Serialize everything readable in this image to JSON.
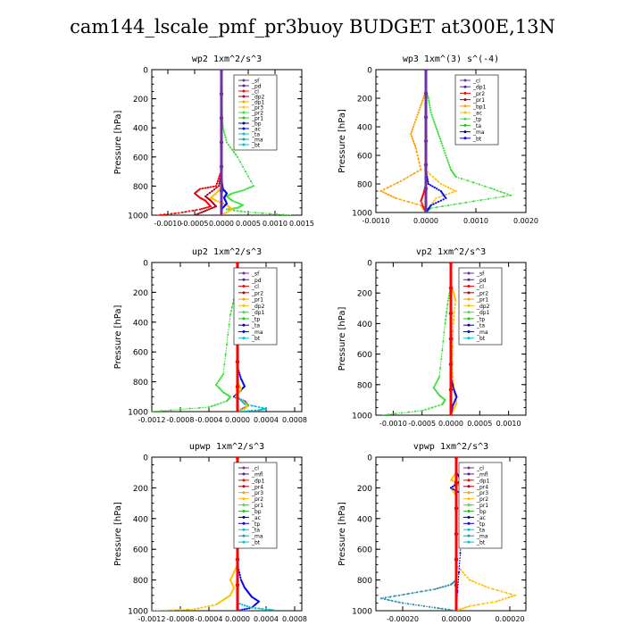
{
  "title": "cam144_lscale_pmf_pr3buoy  BUDGET at300E,13N",
  "colors": {
    "purple": "#7030a0",
    "violet": "#5020a0",
    "red": "#ff0000",
    "darkred": "#b00020",
    "orange": "#ffa000",
    "yellow": "#ffc000",
    "green": "#20c020",
    "lime": "#40e040",
    "blue": "#0000ff",
    "navy": "#0000a0",
    "teal": "#3090b0",
    "cyan": "#00c0e0",
    "bt": "#ff00ff"
  },
  "chart_data": [
    {
      "type": "line",
      "title": "wp2  1xm^2/s^3",
      "ylabel": "Pressure [hPa]",
      "xlim": [
        -0.0013,
        0.0015
      ],
      "xticks": [
        -0.001,
        -0.0005,
        0.0,
        0.0005,
        0.001,
        0.0015
      ],
      "xtick_labels": [
        "-0.0010",
        "-0.0005",
        "0.0000",
        "0.0005",
        "0.0010",
        "0.0015"
      ],
      "ylim": [
        0,
        1000
      ],
      "yticks": [
        0,
        200,
        400,
        600,
        800,
        1000
      ],
      "legend": [
        "_sf",
        "_pd",
        "_cl",
        "_dp2",
        "_dp1",
        "_pr3",
        "_pr2",
        "_pr1",
        "_bp",
        "_ac",
        "_ta",
        "_ma",
        "_bt"
      ],
      "series": [
        {
          "name": "_pr1",
          "color": "lime",
          "x": [
            0,
            0,
            1e-05,
            3e-05,
            0.0001,
            0.0003,
            0.0006,
            0.0004,
            0.0002,
            0.0001,
            0.0002,
            0.0004,
            0.0003,
            0.0001,
            0.0005,
            0.0013
          ],
          "y": [
            0,
            200,
            300,
            400,
            500,
            600,
            800,
            830,
            850,
            870,
            900,
            930,
            950,
            960,
            980,
            1000
          ]
        },
        {
          "name": "_dp1",
          "color": "red",
          "x": [
            0,
            0,
            -1e-05,
            -0.0001,
            -0.0004,
            -0.0005,
            -0.0004,
            -0.0003,
            -0.0002,
            -0.0004,
            -0.0008,
            -0.0012
          ],
          "y": [
            0,
            600,
            700,
            800,
            820,
            850,
            880,
            900,
            940,
            960,
            985,
            1000
          ]
        },
        {
          "name": "_dp2",
          "color": "darkred",
          "x": [
            0,
            0,
            -5e-05,
            -0.0003,
            -0.0002,
            -0.0001,
            -0.0003,
            -0.0005
          ],
          "y": [
            0,
            700,
            800,
            870,
            900,
            940,
            970,
            1000
          ]
        },
        {
          "name": "_pr2",
          "color": "yellow",
          "x": [
            0,
            0,
            2e-05,
            -0.0001,
            -0.0002,
            -0.0001,
            0.0001,
            0.0002,
            0
          ],
          "y": [
            0,
            700,
            800,
            850,
            880,
            900,
            930,
            960,
            1000
          ]
        },
        {
          "name": "_ac",
          "color": "blue",
          "x": [
            0,
            0,
            3e-05,
            0.0001,
            5e-05,
            0.0001,
            0,
            0
          ],
          "y": [
            0,
            750,
            820,
            850,
            880,
            920,
            960,
            1000
          ]
        },
        {
          "name": "_sf",
          "color": "purple",
          "x": [
            0,
            0
          ],
          "y": [
            0,
            1000
          ]
        }
      ]
    },
    {
      "type": "line",
      "title": "wp3  1xm^(3) s^(-4)",
      "ylabel": "Pressure [hPa]",
      "xlim": [
        -0.001,
        0.002
      ],
      "xticks": [
        -0.001,
        0.0,
        0.001,
        0.002
      ],
      "xtick_labels": [
        "-0.0010",
        "0.0000",
        "0.0010",
        "0.0020"
      ],
      "ylim": [
        0,
        1000
      ],
      "yticks": [
        0,
        200,
        400,
        600,
        800,
        1000
      ],
      "legend": [
        "_cl",
        "_dp1",
        "_pr2",
        "_pr1",
        "_bp1",
        "_ac",
        "_tp",
        "_ta",
        "_ma",
        "_bt"
      ],
      "series": [
        {
          "name": "_pr1",
          "color": "lime",
          "x": [
            0,
            0,
            5e-05,
            0.0001,
            0.0002,
            0.0003,
            0.0004,
            0.0005,
            0.0006,
            0.0013,
            0.0017,
            0.0008,
            0.0001,
            0
          ],
          "y": [
            0,
            150,
            200,
            300,
            400,
            500,
            600,
            700,
            750,
            830,
            880,
            930,
            970,
            1000
          ]
        },
        {
          "name": "_pr2",
          "color": "orange",
          "x": [
            0,
            0,
            -0.0001,
            -0.0002,
            -0.0003,
            -0.0002,
            -0.0001,
            -0.0005,
            -0.0009,
            -0.0006,
            -0.0001,
            0
          ],
          "y": [
            0,
            150,
            250,
            350,
            450,
            550,
            700,
            780,
            850,
            900,
            950,
            1000
          ]
        },
        {
          "name": "_bp1",
          "color": "yellow",
          "x": [
            0,
            0,
            2e-05,
            -2e-05,
            0.0003,
            0.0006,
            0.0002,
            0
          ],
          "y": [
            0,
            300,
            500,
            700,
            800,
            850,
            900,
            1000
          ]
        },
        {
          "name": "_ac",
          "color": "blue",
          "x": [
            0,
            0,
            5e-05,
            0.0003,
            0.0004,
            0.0001,
            0
          ],
          "y": [
            0,
            700,
            800,
            850,
            900,
            950,
            1000
          ]
        },
        {
          "name": "_dp1",
          "color": "red",
          "x": [
            0,
            0,
            -5e-05,
            -0.0001,
            0
          ],
          "y": [
            0,
            800,
            870,
            920,
            1000
          ]
        },
        {
          "name": "_cl",
          "color": "purple",
          "x": [
            0,
            0
          ],
          "y": [
            0,
            1000
          ]
        }
      ]
    },
    {
      "type": "line",
      "title": "up2  1xm^2/s^3",
      "ylabel": "Pressure [hPa]",
      "xlim": [
        -0.0012,
        0.0009
      ],
      "xticks": [
        -0.0012,
        -0.0008,
        -0.0004,
        0.0,
        0.0004,
        0.0008
      ],
      "xtick_labels": [
        "-0.0012",
        "-0.0008",
        "-0.0004",
        "0.0000",
        "0.0004",
        "0.0008"
      ],
      "ylim": [
        0,
        1000
      ],
      "yticks": [
        0,
        200,
        400,
        600,
        800,
        1000
      ],
      "legend": [
        "_sf",
        "_pd",
        "_cl",
        "_pr2",
        "_pr1",
        "_dp2",
        "_dp1",
        "_tp",
        "_ta",
        "_ma",
        "_bt"
      ],
      "series": [
        {
          "name": "_dp2",
          "color": "lime",
          "x": [
            0,
            0,
            -3e-05,
            -0.0001,
            -0.0002,
            -0.0003,
            -0.0002,
            -0.0001,
            -0.00015,
            -0.0004,
            -0.0012
          ],
          "y": [
            0,
            150,
            200,
            350,
            750,
            820,
            870,
            900,
            930,
            970,
            1000
          ]
        },
        {
          "name": "_tp",
          "color": "blue",
          "x": [
            0,
            0,
            5e-05,
            0.0001,
            2e-05,
            -5e-05,
            0.0001,
            0.00015,
            0
          ],
          "y": [
            0,
            700,
            780,
            830,
            870,
            900,
            930,
            960,
            1000
          ]
        },
        {
          "name": "_pr1",
          "color": "yellow",
          "x": [
            0,
            0,
            5e-05,
            -3e-05,
            8e-05,
            0.00015,
            0.0001,
            0
          ],
          "y": [
            0,
            800,
            850,
            900,
            930,
            960,
            980,
            1000
          ]
        },
        {
          "name": "_ta",
          "color": "cyan",
          "x": [
            0,
            0,
            0.0001,
            0.0004,
            0.0003,
            0
          ],
          "y": [
            0,
            900,
            950,
            980,
            990,
            1000
          ]
        },
        {
          "name": "_sf",
          "color": "purple",
          "x": [
            0,
            0
          ],
          "y": [
            0,
            1000
          ]
        },
        {
          "name": "_cl",
          "color": "red",
          "x": [
            0,
            0
          ],
          "y": [
            0,
            1000
          ]
        }
      ]
    },
    {
      "type": "line",
      "title": "vp2  1xm^2/s^3",
      "ylabel": "Pressure [hPa]",
      "xlim": [
        -0.0013,
        0.0013
      ],
      "xticks": [
        -0.001,
        -0.0005,
        0.0,
        0.0005,
        0.001
      ],
      "xtick_labels": [
        "-0.0010",
        "-0.0005",
        "0.0000",
        "0.0005",
        "0.0010"
      ],
      "ylim": [
        0,
        1000
      ],
      "yticks": [
        0,
        200,
        400,
        600,
        800,
        1000
      ],
      "legend": [
        "_sf",
        "_pd",
        "_cl",
        "_pr2",
        "_pr1",
        "_dp2",
        "_dp1",
        "_tp",
        "_ta",
        "_ma",
        "_bt"
      ],
      "series": [
        {
          "name": "_dp2",
          "color": "lime",
          "x": [
            0,
            0,
            -5e-05,
            -0.0001,
            -0.0002,
            -0.0003,
            -0.0002,
            -0.0001,
            -0.00015,
            -0.0005,
            -0.0012
          ],
          "y": [
            0,
            150,
            250,
            400,
            750,
            820,
            870,
            900,
            930,
            970,
            1000
          ]
        },
        {
          "name": "_pr1",
          "color": "yellow",
          "x": [
            0,
            0,
            5e-05,
            8e-05,
            4e-05,
            2e-05,
            6e-05,
            0.0001,
            5e-05,
            0
          ],
          "y": [
            0,
            150,
            200,
            250,
            400,
            700,
            850,
            920,
            960,
            1000
          ]
        },
        {
          "name": "_tp",
          "color": "blue",
          "x": [
            0,
            0,
            5e-05,
            0.0001,
            3e-05,
            0
          ],
          "y": [
            0,
            750,
            830,
            880,
            940,
            1000
          ]
        },
        {
          "name": "_sf",
          "color": "purple",
          "x": [
            0,
            0
          ],
          "y": [
            0,
            1000
          ]
        },
        {
          "name": "_cl",
          "color": "red",
          "x": [
            0,
            0
          ],
          "y": [
            0,
            1000
          ]
        }
      ]
    },
    {
      "type": "line",
      "title": "upwp  1xm^2/s^3",
      "ylabel": "Pressure [hPa]",
      "xlim": [
        -0.0012,
        0.0009
      ],
      "xticks": [
        -0.0012,
        -0.0008,
        -0.0004,
        0.0,
        0.0004,
        0.0008
      ],
      "xtick_labels": [
        "-0.0012",
        "-0.0008",
        "-0.0004",
        "0.0000",
        "0.0004",
        "0.0008"
      ],
      "ylim": [
        0,
        1000
      ],
      "yticks": [
        0,
        200,
        400,
        600,
        800,
        1000
      ],
      "legend": [
        "_cl",
        "_mfl",
        "_dp1",
        "_pr4",
        "_pr3",
        "_pr2",
        "_pr1",
        "_bp",
        "_ac",
        "_tp",
        "_ta",
        "_ma",
        "_bt"
      ],
      "series": [
        {
          "name": "_pr2",
          "color": "yellow",
          "x": [
            0,
            0,
            -5e-05,
            -0.0001,
            -5e-05,
            -0.0001,
            -0.0002,
            -0.0003,
            -0.0006,
            -0.0012
          ],
          "y": [
            0,
            700,
            750,
            800,
            850,
            900,
            930,
            960,
            990,
            1000
          ]
        },
        {
          "name": "_tp",
          "color": "blue",
          "x": [
            0,
            0,
            5e-05,
            0.0001,
            0.00015,
            0.0002,
            0.0003,
            0.0002,
            0
          ],
          "y": [
            0,
            700,
            800,
            850,
            880,
            910,
            940,
            980,
            1000
          ]
        },
        {
          "name": "_ta",
          "color": "cyan",
          "x": [
            0,
            0,
            0.0002,
            0.0005,
            0
          ],
          "y": [
            0,
            950,
            980,
            995,
            1000
          ]
        },
        {
          "name": "_cl",
          "color": "purple",
          "x": [
            0,
            0
          ],
          "y": [
            0,
            1000
          ]
        },
        {
          "name": "_dp1",
          "color": "red",
          "x": [
            0,
            0
          ],
          "y": [
            0,
            1000
          ]
        }
      ]
    },
    {
      "type": "line",
      "title": "vpwp  1xm^2/s^3",
      "ylabel": "Pressure [hPa]",
      "xlim": [
        -0.0003,
        0.00026
      ],
      "xticks": [
        -0.0002,
        0.0,
        0.0002
      ],
      "xtick_labels": [
        "-0.00020",
        "0.00000",
        "0.00020"
      ],
      "ylim": [
        0,
        1000
      ],
      "yticks": [
        0,
        200,
        400,
        600,
        800,
        1000
      ],
      "legend": [
        "_cl",
        "_mfl",
        "_dp1",
        "_pr4",
        "_pr3",
        "_pr2",
        "_pr1",
        "_bp",
        "_ac",
        "_tp",
        "_ta",
        "_ma",
        "_bt"
      ],
      "series": [
        {
          "name": "_pr2",
          "color": "yellow",
          "x": [
            0,
            0,
            -2e-05,
            2e-05,
            -2e-05,
            0,
            0,
            5e-05,
            0.00012,
            0.00022,
            0.00015,
            5e-05,
            0
          ],
          "y": [
            0,
            100,
            150,
            170,
            200,
            250,
            700,
            800,
            850,
            900,
            940,
            970,
            1000
          ]
        },
        {
          "name": "_ta",
          "color": "teal",
          "x": [
            0,
            0,
            -2e-05,
            -8e-05,
            -0.00018,
            -0.00028,
            -0.0002,
            -8e-05,
            0
          ],
          "y": [
            0,
            800,
            830,
            860,
            890,
            920,
            950,
            980,
            1000
          ]
        },
        {
          "name": "_tp",
          "color": "blue",
          "x": [
            0,
            0,
            2e-05,
            -2e-05,
            3e-05,
            0
          ],
          "y": [
            0,
            100,
            150,
            200,
            250,
            1000
          ]
        },
        {
          "name": "_cl",
          "color": "purple",
          "x": [
            0,
            0
          ],
          "y": [
            0,
            1000
          ]
        },
        {
          "name": "_dp1",
          "color": "red",
          "x": [
            0,
            0
          ],
          "y": [
            0,
            1000
          ]
        }
      ]
    }
  ]
}
